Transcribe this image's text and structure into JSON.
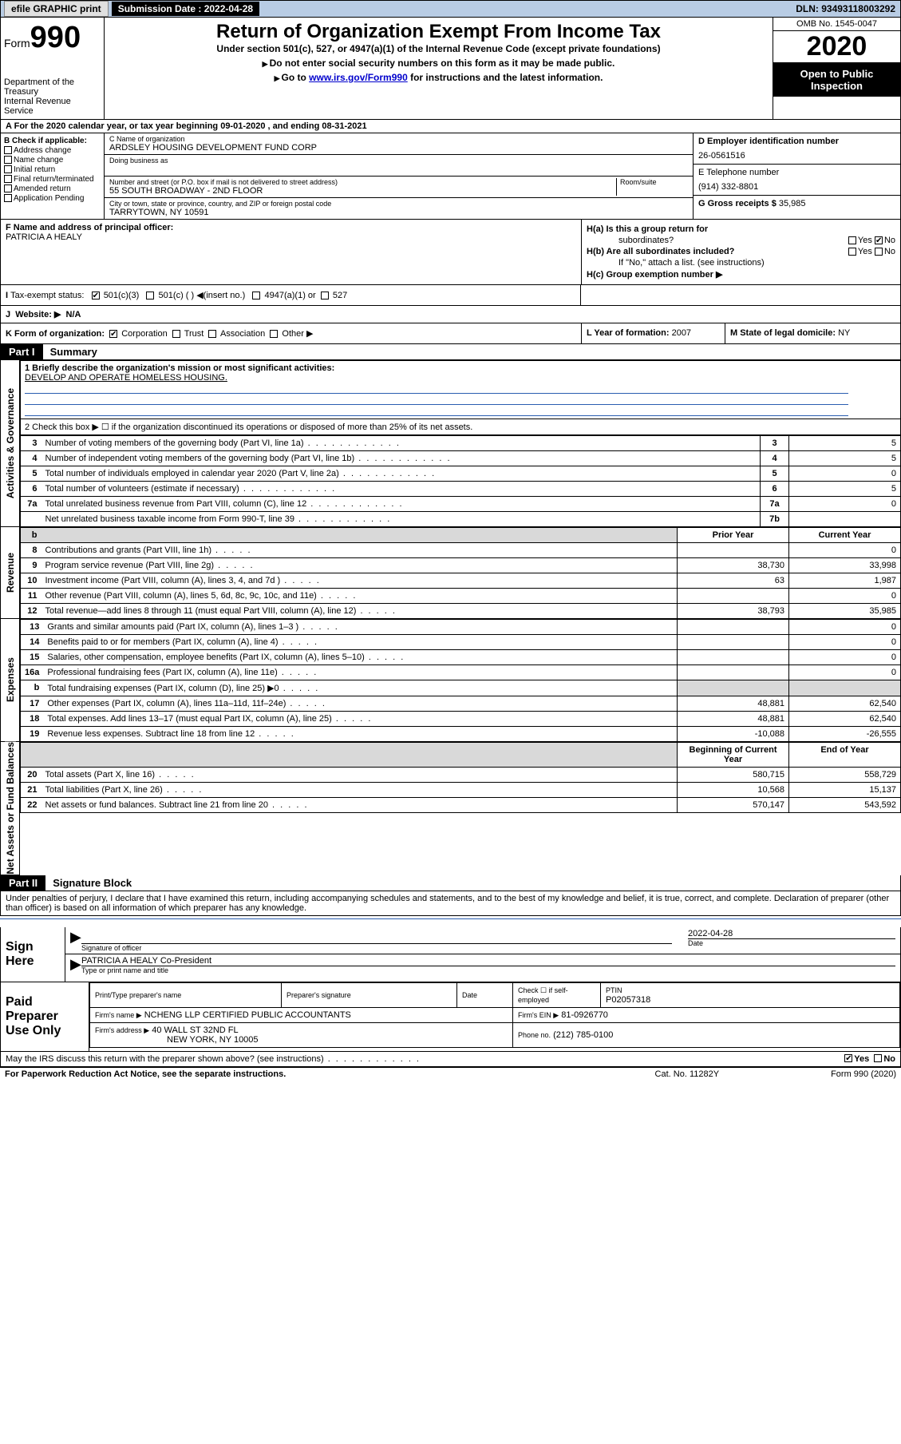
{
  "top": {
    "efile": "efile GRAPHIC print",
    "submission_label": "Submission Date : 2022-04-28",
    "dln": "DLN: 93493118003292"
  },
  "header": {
    "form_word": "Form",
    "form_num": "990",
    "title": "Return of Organization Exempt From Income Tax",
    "subtitle": "Under section 501(c), 527, or 4947(a)(1) of the Internal Revenue Code (except private foundations)",
    "note1": "Do not enter social security numbers on this form as it may be made public.",
    "note2": "Go to ",
    "note2_link": "www.irs.gov/Form990",
    "note2_after": " for instructions and the latest information.",
    "dept": "Department of the Treasury",
    "irs": "Internal Revenue Service",
    "omb": "OMB No. 1545-0047",
    "year": "2020",
    "open": "Open to Public Inspection"
  },
  "lineA": "For the 2020 calendar year, or tax year beginning 09-01-2020   , and ending 08-31-2021",
  "colB": {
    "title": "B Check if applicable:",
    "items": [
      "Address change",
      "Name change",
      "Initial return",
      "Final return/terminated",
      "Amended return",
      "Application Pending"
    ]
  },
  "colC": {
    "name_lbl": "C Name of organization",
    "name": "ARDSLEY HOUSING DEVELOPMENT FUND CORP",
    "dba_lbl": "Doing business as",
    "addr_lbl": "Number and street (or P.O. box if mail is not delivered to street address)",
    "room_lbl": "Room/suite",
    "addr": "55 SOUTH BROADWAY - 2ND FLOOR",
    "city_lbl": "City or town, state or province, country, and ZIP or foreign postal code",
    "city": "TARRYTOWN, NY  10591"
  },
  "colD": {
    "ein_lbl": "D Employer identification number",
    "ein": "26-0561516",
    "tel_lbl": "E Telephone number",
    "tel": "(914) 332-8801",
    "gross_lbl": "G Gross receipts $",
    "gross": "35,985"
  },
  "colF": {
    "lbl": "F Name and address of principal officer:",
    "name": "PATRICIA A HEALY"
  },
  "colH": {
    "ha": "H(a)  Is this a group return for",
    "ha2": "subordinates?",
    "hb": "H(b)  Are all subordinates included?",
    "hb_note": "If \"No,\" attach a list. (see instructions)",
    "hc": "H(c)  Group exemption number ▶",
    "yes": "Yes",
    "no": "No"
  },
  "taxI": {
    "lbl": "Tax-exempt status:",
    "opts": [
      "501(c)(3)",
      "501(c) (  ) ◀(insert no.)",
      "4947(a)(1) or",
      "527"
    ]
  },
  "J": {
    "lbl": "Website: ▶",
    "val": "N/A"
  },
  "K": {
    "lbl": "K Form of organization:",
    "opts": [
      "Corporation",
      "Trust",
      "Association",
      "Other ▶"
    ],
    "L_lbl": "L Year of formation:",
    "L_val": "2007",
    "M_lbl": "M State of legal domicile:",
    "M_val": "NY"
  },
  "part1": {
    "hdr": "Part I",
    "title": "Summary",
    "l1a": "1  Briefly describe the organization's mission or most significant activities:",
    "l1b": "DEVELOP AND OPERATE HOMELESS HOUSING.",
    "l2": "2   Check this box ▶ ☐  if the organization discontinued its operations or disposed of more than 25% of its net assets."
  },
  "side": {
    "gov": "Activities & Governance",
    "rev": "Revenue",
    "exp": "Expenses",
    "net": "Net Assets or Fund Balances"
  },
  "gov_rows": [
    {
      "n": "3",
      "t": "Number of voting members of the governing body (Part VI, line 1a)",
      "b": "3",
      "v": "5"
    },
    {
      "n": "4",
      "t": "Number of independent voting members of the governing body (Part VI, line 1b)",
      "b": "4",
      "v": "5"
    },
    {
      "n": "5",
      "t": "Total number of individuals employed in calendar year 2020 (Part V, line 2a)",
      "b": "5",
      "v": "0"
    },
    {
      "n": "6",
      "t": "Total number of volunteers (estimate if necessary)",
      "b": "6",
      "v": "5"
    },
    {
      "n": "7a",
      "t": "Total unrelated business revenue from Part VIII, column (C), line 12",
      "b": "7a",
      "v": "0"
    },
    {
      "n": "",
      "t": "Net unrelated business taxable income from Form 990-T, line 39",
      "b": "7b",
      "v": ""
    }
  ],
  "rev_hdr": {
    "b": "b",
    "py": "Prior Year",
    "cy": "Current Year"
  },
  "rev_rows": [
    {
      "n": "8",
      "t": "Contributions and grants (Part VIII, line 1h)",
      "py": "",
      "cy": "0"
    },
    {
      "n": "9",
      "t": "Program service revenue (Part VIII, line 2g)",
      "py": "38,730",
      "cy": "33,998"
    },
    {
      "n": "10",
      "t": "Investment income (Part VIII, column (A), lines 3, 4, and 7d )",
      "py": "63",
      "cy": "1,987"
    },
    {
      "n": "11",
      "t": "Other revenue (Part VIII, column (A), lines 5, 6d, 8c, 9c, 10c, and 11e)",
      "py": "",
      "cy": "0"
    },
    {
      "n": "12",
      "t": "Total revenue—add lines 8 through 11 (must equal Part VIII, column (A), line 12)",
      "py": "38,793",
      "cy": "35,985"
    }
  ],
  "exp_rows": [
    {
      "n": "13",
      "t": "Grants and similar amounts paid (Part IX, column (A), lines 1–3 )",
      "py": "",
      "cy": "0"
    },
    {
      "n": "14",
      "t": "Benefits paid to or for members (Part IX, column (A), line 4)",
      "py": "",
      "cy": "0"
    },
    {
      "n": "15",
      "t": "Salaries, other compensation, employee benefits (Part IX, column (A), lines 5–10)",
      "py": "",
      "cy": "0"
    },
    {
      "n": "16a",
      "t": "Professional fundraising fees (Part IX, column (A), line 11e)",
      "py": "",
      "cy": "0"
    },
    {
      "n": "b",
      "t": "Total fundraising expenses (Part IX, column (D), line 25) ▶0",
      "py": "",
      "cy": "",
      "grey": true
    },
    {
      "n": "17",
      "t": "Other expenses (Part IX, column (A), lines 11a–11d, 11f–24e)",
      "py": "48,881",
      "cy": "62,540"
    },
    {
      "n": "18",
      "t": "Total expenses. Add lines 13–17 (must equal Part IX, column (A), line 25)",
      "py": "48,881",
      "cy": "62,540"
    },
    {
      "n": "19",
      "t": "Revenue less expenses. Subtract line 18 from line 12",
      "py": "-10,088",
      "cy": "-26,555"
    }
  ],
  "net_hdr": {
    "py": "Beginning of Current Year",
    "cy": "End of Year"
  },
  "net_rows": [
    {
      "n": "20",
      "t": "Total assets (Part X, line 16)",
      "py": "580,715",
      "cy": "558,729"
    },
    {
      "n": "21",
      "t": "Total liabilities (Part X, line 26)",
      "py": "10,568",
      "cy": "15,137"
    },
    {
      "n": "22",
      "t": "Net assets or fund balances. Subtract line 21 from line 20",
      "py": "570,147",
      "cy": "543,592"
    }
  ],
  "part2": {
    "hdr": "Part II",
    "title": "Signature Block",
    "pen": "Under penalties of perjury, I declare that I have examined this return, including accompanying schedules and statements, and to the best of my knowledge and belief, it is true, correct, and complete. Declaration of preparer (other than officer) is based on all information of which preparer has any knowledge."
  },
  "sign": {
    "here": "Sign Here",
    "sig_lbl": "Signature of officer",
    "date_lbl": "Date",
    "date": "2022-04-28",
    "name": "PATRICIA A HEALY  Co-President",
    "type_lbl": "Type or print name and title"
  },
  "paid": {
    "title": "Paid Preparer Use Only",
    "h1": "Print/Type preparer's name",
    "h2": "Preparer's signature",
    "h3": "Date",
    "h4": "Check ☐ if self-employed",
    "h5_lbl": "PTIN",
    "h5": "P02057318",
    "firm_lbl": "Firm's name    ▶",
    "firm": "NCHENG LLP CERTIFIED PUBLIC ACCOUNTANTS",
    "ein_lbl": "Firm's EIN ▶",
    "ein": "81-0926770",
    "addr_lbl": "Firm's address ▶",
    "addr1": "40 WALL ST 32ND FL",
    "addr2": "NEW YORK, NY  10005",
    "phone_lbl": "Phone no.",
    "phone": "(212) 785-0100",
    "discuss": "May the IRS discuss this return with the preparer shown above? (see instructions)",
    "yes": "Yes",
    "no": "No"
  },
  "footer": {
    "l": "For Paperwork Reduction Act Notice, see the separate instructions.",
    "c": "Cat. No. 11282Y",
    "r": "Form 990 (2020)"
  }
}
